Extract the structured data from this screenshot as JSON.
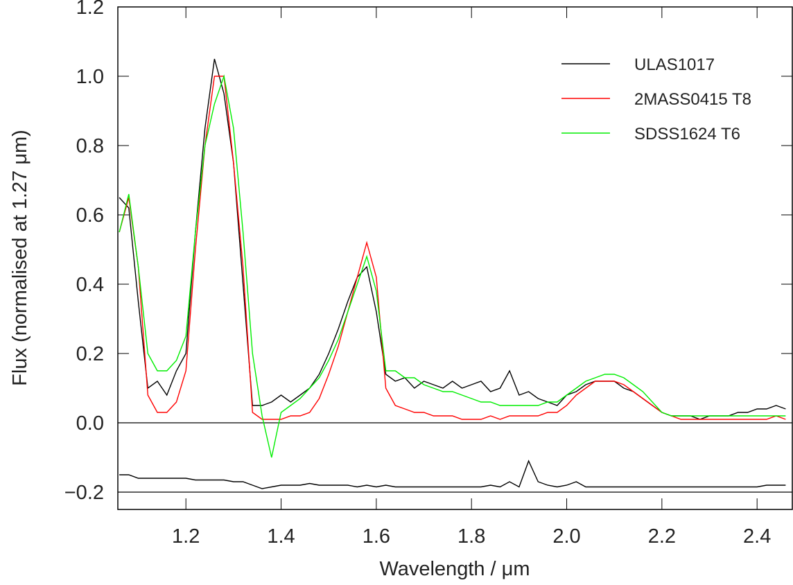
{
  "chart_data": {
    "type": "line",
    "xlabel": "Wavelength / μm",
    "ylabel": "Flux (normalised at 1.27 μm)",
    "xlim": [
      1.057,
      2.474
    ],
    "ylim": [
      -0.25,
      1.2
    ],
    "xticks": [
      1.2,
      1.4,
      1.6,
      1.8,
      {
        "value": 2.0,
        "label": "2.0"
      },
      2.2,
      2.4
    ],
    "yticks": [
      {
        "value": -0.2,
        "label": "−0.2"
      },
      {
        "value": 0,
        "label": "0.0"
      },
      0.2,
      0.4,
      0.6,
      0.8,
      {
        "value": 1.0,
        "label": "1.0"
      },
      1.2
    ],
    "hlines": [
      0,
      -0.2
    ],
    "legend": "upper right",
    "x": [
      1.06,
      1.08,
      1.1,
      1.12,
      1.14,
      1.16,
      1.18,
      1.2,
      1.22,
      1.24,
      1.26,
      1.28,
      1.3,
      1.32,
      1.34,
      1.36,
      1.38,
      1.4,
      1.42,
      1.44,
      1.46,
      1.48,
      1.5,
      1.52,
      1.54,
      1.56,
      1.58,
      1.6,
      1.62,
      1.64,
      1.66,
      1.68,
      1.7,
      1.72,
      1.74,
      1.76,
      1.78,
      1.8,
      1.82,
      1.84,
      1.86,
      1.88,
      1.9,
      1.92,
      1.94,
      1.96,
      1.98,
      2.0,
      2.02,
      2.04,
      2.06,
      2.08,
      2.1,
      2.12,
      2.14,
      2.16,
      2.18,
      2.2,
      2.22,
      2.24,
      2.26,
      2.28,
      2.3,
      2.32,
      2.34,
      2.36,
      2.38,
      2.4,
      2.42,
      2.44,
      2.46
    ],
    "series": [
      {
        "name": "ULAS1017",
        "color": "#000000",
        "values": [
          0.65,
          0.62,
          0.35,
          0.1,
          0.12,
          0.08,
          0.15,
          0.2,
          0.55,
          0.85,
          1.05,
          0.95,
          0.75,
          0.4,
          0.05,
          0.05,
          0.06,
          0.08,
          0.06,
          0.08,
          0.1,
          0.14,
          0.2,
          0.27,
          0.35,
          0.42,
          0.45,
          0.32,
          0.14,
          0.12,
          0.13,
          0.1,
          0.12,
          0.11,
          0.1,
          0.12,
          0.1,
          0.11,
          0.12,
          0.09,
          0.1,
          0.15,
          0.08,
          0.09,
          0.07,
          0.06,
          0.05,
          0.08,
          0.09,
          0.11,
          0.12,
          0.12,
          0.12,
          0.1,
          0.09,
          0.07,
          0.05,
          0.03,
          0.02,
          0.02,
          0.02,
          0.01,
          0.02,
          0.02,
          0.02,
          0.03,
          0.03,
          0.04,
          0.04,
          0.05,
          0.04
        ]
      },
      {
        "name": "2MASS0415 T8",
        "color": "#ff0000",
        "values": [
          0.55,
          0.65,
          0.45,
          0.08,
          0.03,
          0.03,
          0.06,
          0.15,
          0.5,
          0.8,
          1.0,
          1.0,
          0.75,
          0.45,
          0.03,
          0.01,
          0.01,
          0.01,
          0.02,
          0.02,
          0.03,
          0.07,
          0.14,
          0.22,
          0.32,
          0.42,
          0.52,
          0.42,
          0.1,
          0.05,
          0.04,
          0.03,
          0.03,
          0.02,
          0.02,
          0.02,
          0.01,
          0.01,
          0.01,
          0.02,
          0.01,
          0.02,
          0.02,
          0.02,
          0.02,
          0.03,
          0.03,
          0.05,
          0.08,
          0.1,
          0.12,
          0.12,
          0.12,
          0.11,
          0.09,
          0.07,
          0.05,
          0.03,
          0.02,
          0.01,
          0.01,
          0.01,
          0.01,
          0.01,
          0.01,
          0.01,
          0.01,
          0.01,
          0.01,
          0.02,
          0.01
        ]
      },
      {
        "name": "SDSS1624 T6",
        "color": "#00ee00",
        "values": [
          0.55,
          0.66,
          0.45,
          0.2,
          0.15,
          0.15,
          0.18,
          0.25,
          0.55,
          0.8,
          0.92,
          1.0,
          0.85,
          0.55,
          0.2,
          0.02,
          -0.1,
          0.03,
          0.05,
          0.07,
          0.1,
          0.13,
          0.18,
          0.24,
          0.32,
          0.4,
          0.48,
          0.38,
          0.15,
          0.15,
          0.13,
          0.13,
          0.11,
          0.1,
          0.09,
          0.09,
          0.08,
          0.07,
          0.06,
          0.06,
          0.05,
          0.05,
          0.05,
          0.05,
          0.05,
          0.06,
          0.06,
          0.08,
          0.1,
          0.12,
          0.13,
          0.14,
          0.14,
          0.13,
          0.11,
          0.09,
          0.06,
          0.03,
          0.02,
          0.02,
          0.02,
          0.02,
          0.02,
          0.02,
          0.02,
          0.02,
          0.02,
          0.02,
          0.02,
          0.02,
          0.02
        ]
      },
      {
        "color": "#000000",
        "values": [
          -0.15,
          -0.15,
          -0.16,
          -0.16,
          -0.16,
          -0.16,
          -0.16,
          -0.16,
          -0.165,
          -0.165,
          -0.165,
          -0.165,
          -0.17,
          -0.17,
          -0.18,
          -0.19,
          -0.185,
          -0.18,
          -0.18,
          -0.18,
          -0.175,
          -0.18,
          -0.18,
          -0.18,
          -0.18,
          -0.185,
          -0.18,
          -0.185,
          -0.18,
          -0.185,
          -0.185,
          -0.185,
          -0.185,
          -0.185,
          -0.185,
          -0.185,
          -0.185,
          -0.185,
          -0.185,
          -0.18,
          -0.185,
          -0.17,
          -0.185,
          -0.11,
          -0.17,
          -0.18,
          -0.185,
          -0.18,
          -0.17,
          -0.185,
          -0.185,
          -0.185,
          -0.185,
          -0.185,
          -0.185,
          -0.185,
          -0.185,
          -0.185,
          -0.185,
          -0.185,
          -0.185,
          -0.185,
          -0.185,
          -0.185,
          -0.185,
          -0.185,
          -0.185,
          -0.185,
          -0.18,
          -0.18,
          -0.18
        ]
      }
    ]
  }
}
